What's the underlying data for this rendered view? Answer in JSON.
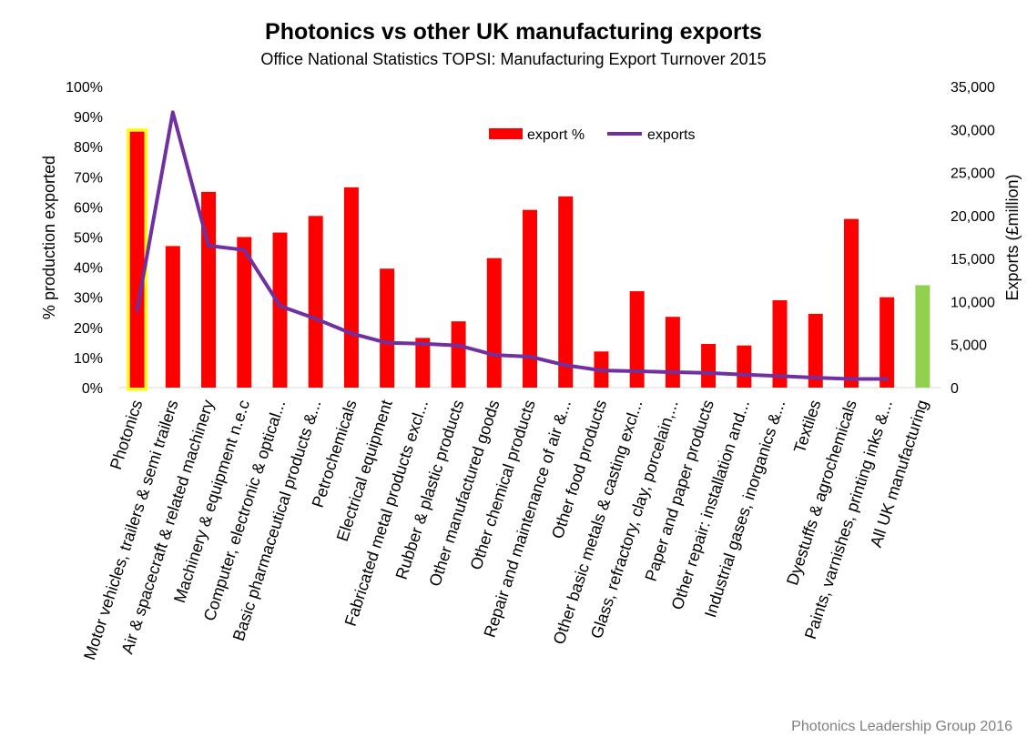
{
  "chart_data": {
    "type": "bar",
    "title": "Photonics vs other UK manufacturing exports",
    "subtitle": "Office National Statistics TOPSI: Manufacturing Export Turnover 2015",
    "ylabel": "% production exported",
    "y2label": "Exports (£million)",
    "ylim": [
      0,
      100
    ],
    "y2lim": [
      0,
      35000
    ],
    "yticks": [
      "0%",
      "10%",
      "20%",
      "30%",
      "40%",
      "50%",
      "60%",
      "70%",
      "80%",
      "90%",
      "100%"
    ],
    "y2ticks": [
      "0",
      "5,000",
      "10,000",
      "15,000",
      "20,000",
      "25,000",
      "30,000",
      "35,000"
    ],
    "grid": false,
    "legend_position": "top-center",
    "categories": [
      "Photonics",
      "Motor vehicles, trailers & semi trailers",
      "Air & spacecraft & related machinery",
      "Machinery & equipment n.e.c",
      "Computer, electronic & optical...",
      "Basic pharmaceutical products &...",
      "Petrochemicals",
      "Electrical equipment",
      "Fabricated metal products excl...",
      "Rubber & plastic products",
      "Other manufactured goods",
      "Other chemical products",
      "Repair and maintenance of air &...",
      "Other food products",
      "Other basic metals & casting excl...",
      "Glass, refractory, clay, porcelain,...",
      "Paper and paper products",
      "Other repair: installation and...",
      "Industrial gases, inorganics &...",
      "Textiles",
      "Dyestuffs & agrochemicals",
      "Paints, varnishes, printing inks &...",
      "All UK manufacturing"
    ],
    "series": [
      {
        "name": "export %",
        "kind": "bar",
        "axis": "left",
        "color": "#ff0000",
        "values": [
          85,
          47,
          65,
          50,
          51.5,
          57,
          66.5,
          39.5,
          16.5,
          22,
          43,
          59,
          63.5,
          12,
          32,
          23.5,
          14.5,
          14,
          29,
          24.5,
          56,
          30,
          34
        ],
        "highlight": {
          "first_bar_outline": "#ffff00",
          "last_bar_color": "#92d050"
        }
      },
      {
        "name": "exports",
        "kind": "line",
        "axis": "right",
        "color": "#7030a0",
        "values": [
          9000,
          32000,
          16500,
          16000,
          9500,
          8000,
          6300,
          5200,
          5100,
          4900,
          3800,
          3600,
          2600,
          2000,
          1900,
          1800,
          1700,
          1500,
          1350,
          1150,
          1000,
          1000,
          null
        ]
      }
    ]
  },
  "credit": "Photonics Leadership Group 2016"
}
